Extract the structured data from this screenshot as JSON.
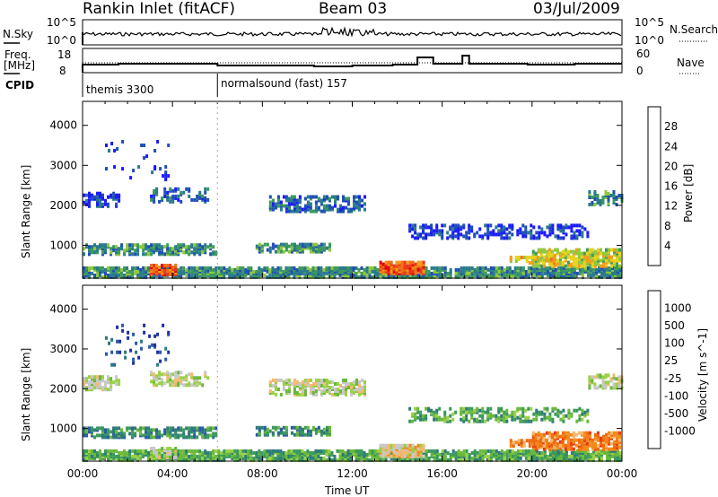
{
  "header": {
    "station": "Rankin Inlet (fitACF)",
    "beam": "Beam 03",
    "date": "03/Jul/2009"
  },
  "left_labels": {
    "nsky": "N.Sky",
    "nsky_hi": "10^5",
    "nsky_lo": "10^0",
    "freq1": "Freq.",
    "freq2": "[MHz]",
    "freq_hi": "18",
    "freq_lo": "8",
    "cpid": "CPID"
  },
  "right_labels": {
    "nsearch": "N.Search",
    "nsearch_hi": "10^5",
    "nsearch_lo": "10^0",
    "nave": "Nave",
    "nave_hi": "60",
    "nave_lo": "0"
  },
  "cpid_segments": [
    {
      "label": "themis 3300",
      "start_hour": 0
    },
    {
      "label": "normalsound (fast) 157",
      "start_hour": 6
    }
  ],
  "chart_data": {
    "type": "heatmap",
    "x_axis": {
      "label": "Time UT",
      "range": [
        0,
        24
      ],
      "ticks": [
        "00:00",
        "04:00",
        "08:00",
        "12:00",
        "16:00",
        "20:00",
        "00:00"
      ]
    },
    "y_axis": {
      "label": "Slant Range [km]",
      "range": [
        180,
        4600
      ],
      "ticks": [
        "1000",
        "2000",
        "3000",
        "4000"
      ]
    },
    "panels": [
      {
        "name": "power",
        "colorbar_label": "Power [dB]",
        "colorbar_ticks": [
          "4",
          "8",
          "12",
          "16",
          "20",
          "24",
          "28"
        ],
        "colors": [
          "#1a1aff",
          "#1f4fb4",
          "#2a7a8c",
          "#3d9a5a",
          "#8fc83c",
          "#e8d21c",
          "#f59a1a",
          "#f0701a",
          "#e83a1a",
          "#e00000"
        ]
      },
      {
        "name": "velocity",
        "colorbar_label": "Velocity [m s^-1]",
        "colorbar_ticks": [
          "1000",
          "500",
          "100",
          "25",
          "-25",
          "-100",
          "-500",
          "-1000"
        ],
        "colors": [
          "#2030a0",
          "#2a5aa8",
          "#2e7a7a",
          "#3a9a5a",
          "#6ab83a",
          "#9ad048",
          "#c8c8c8",
          "#f5b870",
          "#f08a1a",
          "#f06a10",
          "#e83a10",
          "#e00000"
        ]
      }
    ]
  }
}
